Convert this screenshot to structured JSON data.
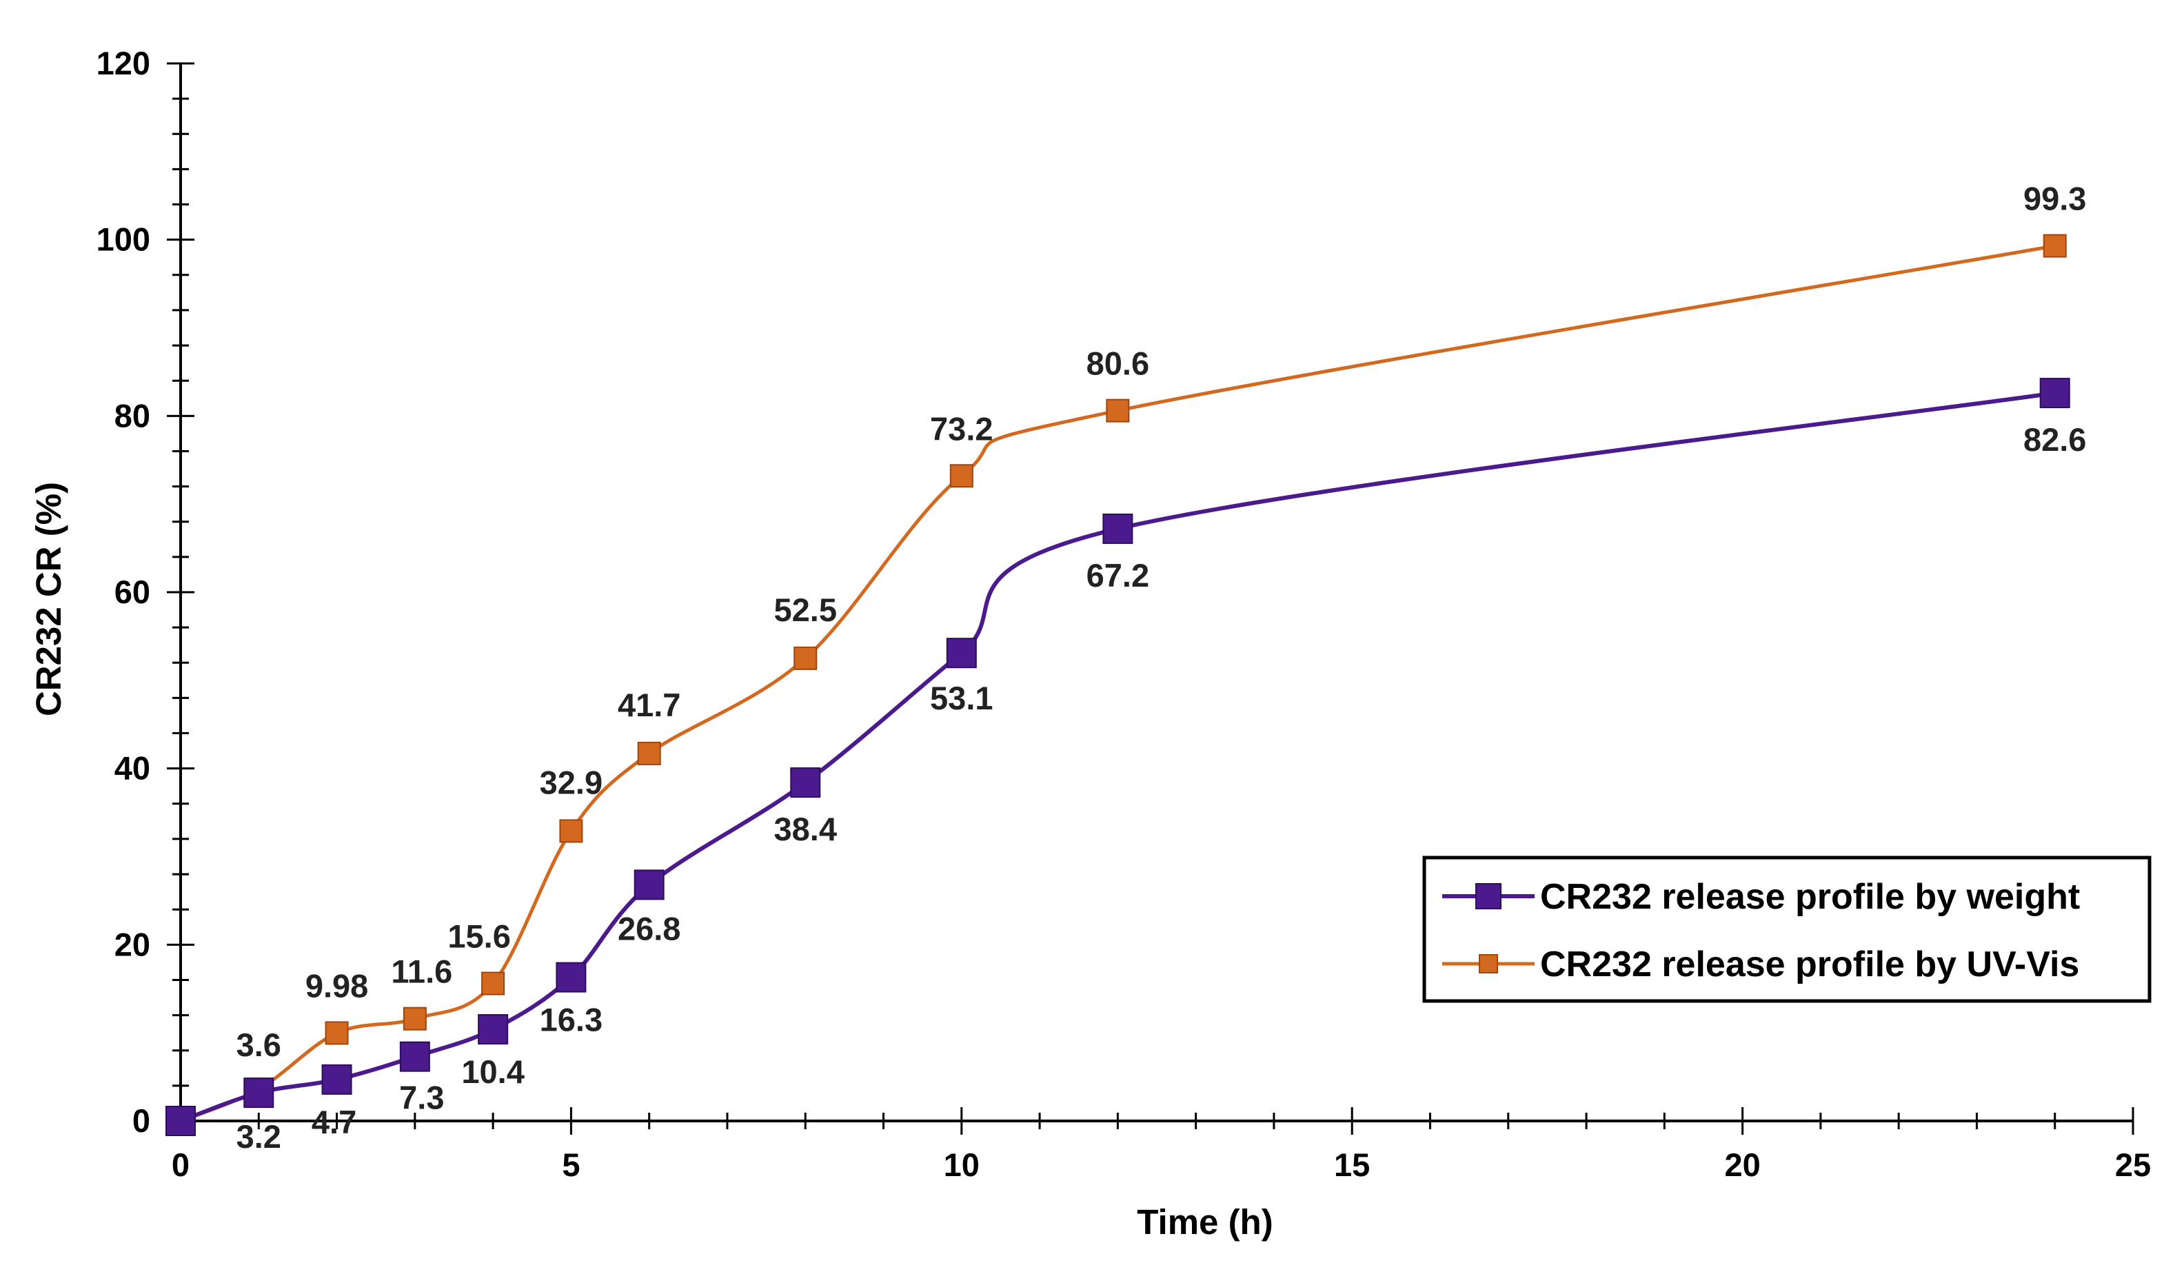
{
  "chart_data": {
    "type": "line",
    "title": "",
    "xlabel": "Time (h)",
    "ylabel": "CR232 CR (%)",
    "xlim": [
      0,
      25
    ],
    "ylim": [
      0,
      120
    ],
    "grid": false,
    "legend_position": "bottom-right",
    "x_ticks": [
      "0",
      "5",
      "10",
      "15",
      "20",
      "25"
    ],
    "y_ticks": [
      "0",
      "20",
      "40",
      "60",
      "80",
      "100",
      "120"
    ],
    "series": [
      {
        "name": "CR232 release profile by weight",
        "color": "#4b1a8c",
        "marker": "square",
        "x": [
          0,
          1,
          2,
          3,
          4,
          5,
          6,
          8,
          10,
          12,
          24
        ],
        "values": [
          0,
          3.2,
          4.7,
          7.3,
          10.4,
          16.3,
          26.8,
          38.4,
          53.1,
          67.2,
          82.6
        ],
        "labels": [
          "",
          "3.2",
          "4.7",
          "7.3",
          "10.4",
          "16.3",
          "26.8",
          "38.4",
          "53.1",
          "67.2",
          "82.6"
        ]
      },
      {
        "name": "CR232 release profile by UV-Vis",
        "color": "#d2691e",
        "marker": "square",
        "x": [
          0,
          1,
          2,
          3,
          4,
          5,
          6,
          8,
          10,
          12,
          24
        ],
        "values": [
          0,
          3.6,
          9.98,
          11.6,
          15.6,
          32.9,
          41.7,
          52.5,
          73.2,
          80.6,
          99.3
        ],
        "labels": [
          "",
          "3.6",
          "9.98",
          "11.6",
          "15.6",
          "32.9",
          "41.7",
          "52.5",
          "73.2",
          "80.6",
          "99.3"
        ]
      }
    ]
  }
}
